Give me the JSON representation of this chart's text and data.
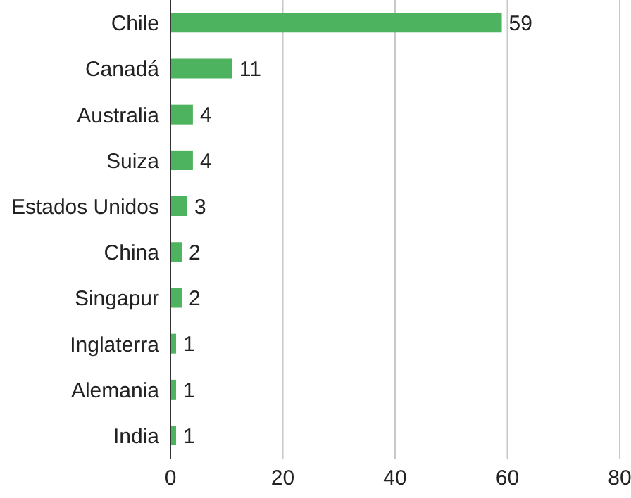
{
  "chart_data": {
    "type": "bar",
    "orientation": "horizontal",
    "categories": [
      "Chile",
      "Canadá",
      "Australia",
      "Suiza",
      "Estados Unidos",
      "China",
      "Singapur",
      "Inglaterra",
      "Alemania",
      "India"
    ],
    "values": [
      59,
      11,
      4,
      4,
      3,
      2,
      2,
      1,
      1,
      1
    ],
    "color": "#4db35e",
    "xlim": [
      0,
      80
    ],
    "xticks": [
      0,
      20,
      40,
      60,
      80
    ],
    "grid": "x",
    "data_labels": true
  }
}
